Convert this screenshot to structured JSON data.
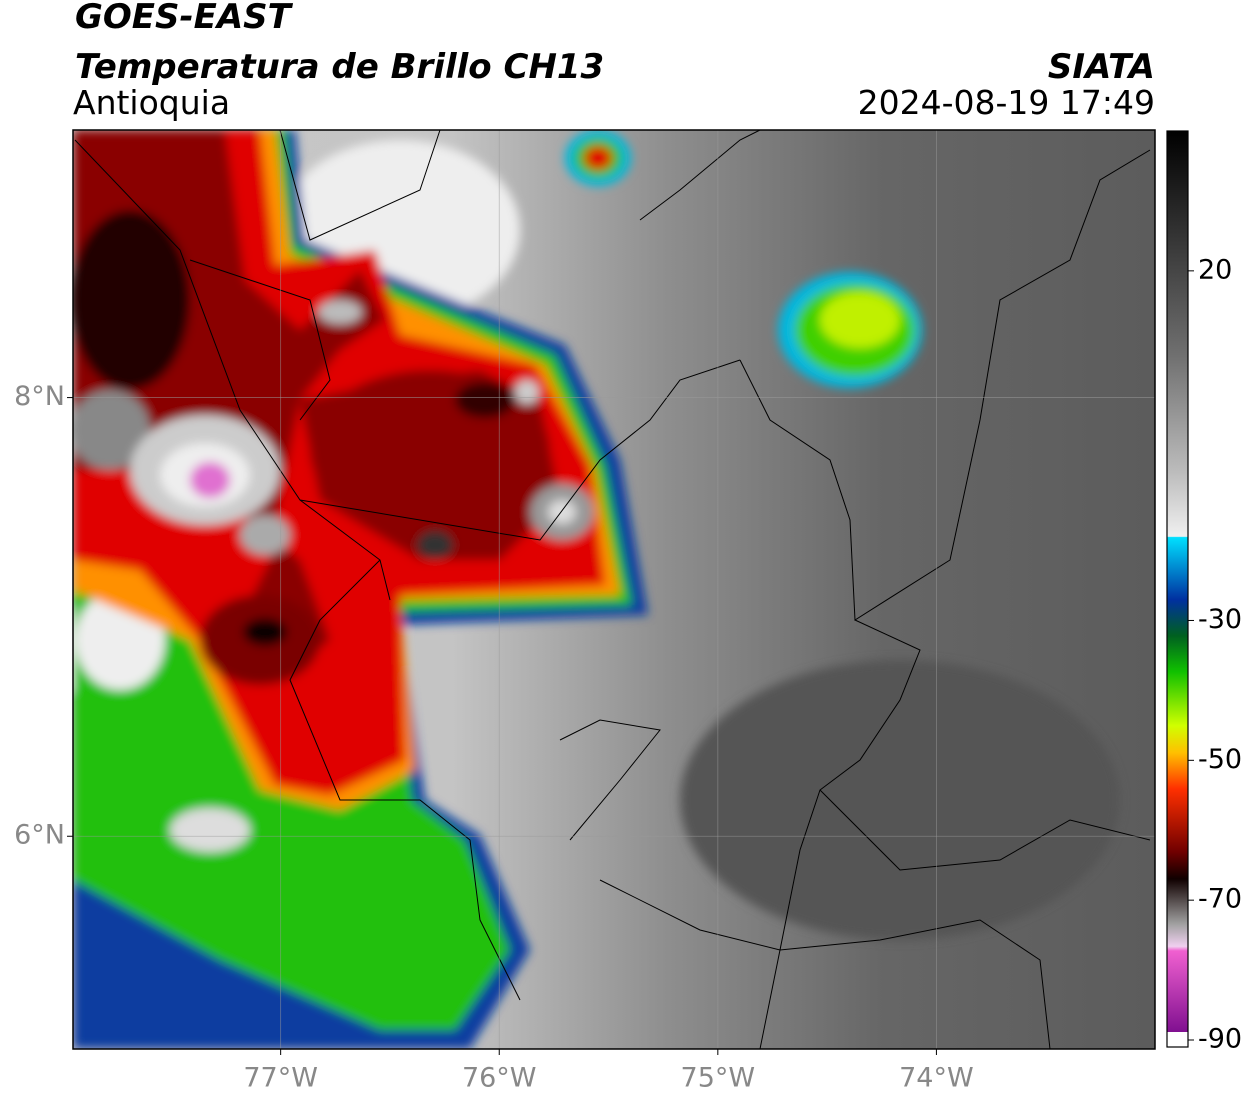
{
  "header": {
    "satellite": "GOES-EAST",
    "product": "Temperatura de Brillo CH13",
    "region": "Antioquia",
    "agency": "SIATA",
    "timestamp": "2024-08-19 17:49"
  },
  "map": {
    "xlim": [
      -77.95,
      -73.0
    ],
    "ylim": [
      5.03,
      9.22
    ],
    "xticks": [
      {
        "value": -77,
        "label": "77°W"
      },
      {
        "value": -76,
        "label": "76°W"
      },
      {
        "value": -75,
        "label": "75°W"
      },
      {
        "value": -74,
        "label": "74°W"
      }
    ],
    "yticks": [
      {
        "value": 6,
        "label": "6°N"
      },
      {
        "value": 8,
        "label": "8°N"
      }
    ],
    "grid": true
  },
  "colorbar": {
    "lim": [
      -91,
      40
    ],
    "ticks": [
      20,
      -30,
      -50,
      -70,
      -90
    ]
  }
}
